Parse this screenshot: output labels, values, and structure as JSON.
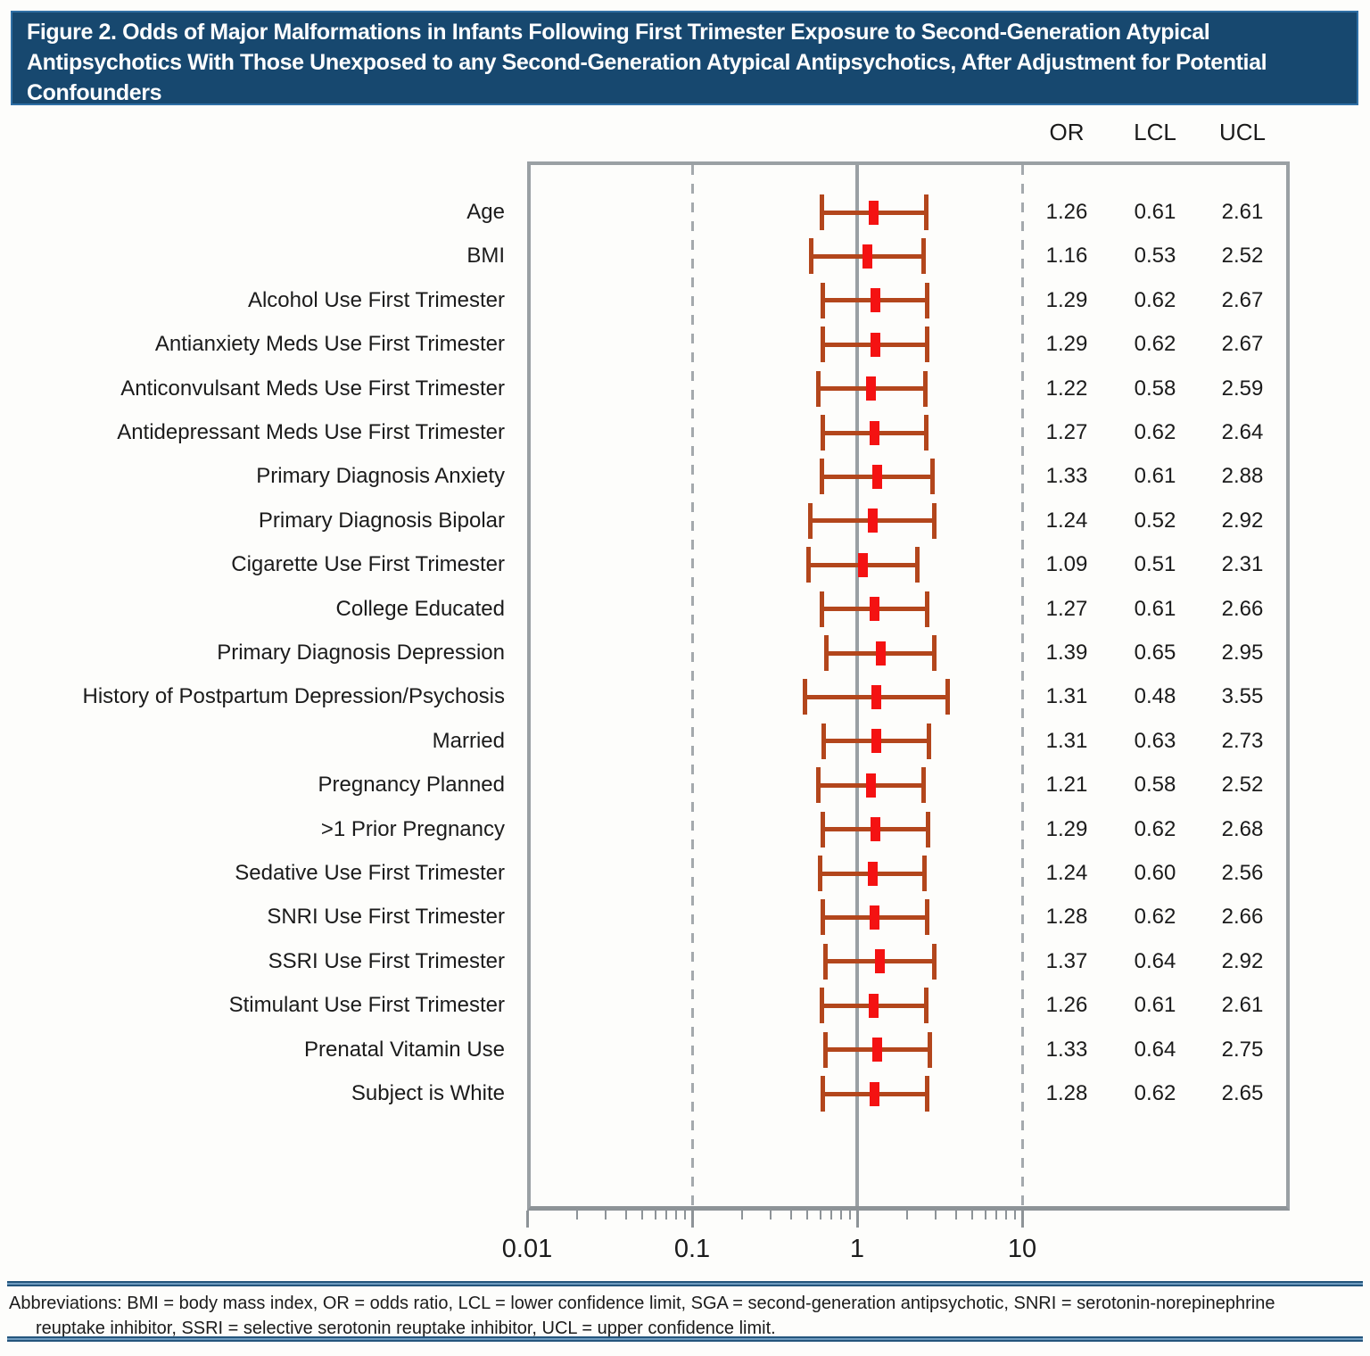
{
  "title": "Figure 2. Odds of Major Malformations in Infants Following First Trimester Exposure to Second-Generation Atypical\nAntipsychotics With Those Unexposed to any Second-Generation Atypical Antipsychotics, After Adjustment for Potential\nConfounders",
  "columns": {
    "or": "OR",
    "lcl": "LCL",
    "ucl": "UCL"
  },
  "footer": {
    "text": "Abbreviations: BMI = body mass index, OR = odds ratio, LCL = lower confidence limit, SGA = second-generation antipsychotic, SNRI = serotonin-norepinephrine\nreuptake inhibitor, SSRI = selective serotonin reuptake inhibitor, UCL = upper confidence limit."
  },
  "colors": {
    "header_bg": "#17486f",
    "header_border": "#2f6fa5",
    "bar_line": "#b3461c",
    "marker": "#f41212",
    "grid_gray": "#a4a9ad",
    "box_border": "#9aa0a4",
    "rule_blue": "#24557c"
  },
  "chart_data": {
    "type": "forest",
    "title": "Odds of Major Malformations: First Trimester SGA Exposure vs Unexposed (Adjusted)",
    "x_axis": {
      "scale": "log",
      "ticks": [
        0.01,
        0.1,
        1,
        10
      ],
      "tick_labels": [
        "0.01",
        "0.1",
        "1",
        "10"
      ],
      "range": [
        0.01,
        42
      ],
      "minor_ticks": "log decades 2-9 between 0.01 and 10"
    },
    "reference_line": 1,
    "dashed_gridlines": [
      0.1,
      10
    ],
    "value_columns": [
      "OR",
      "LCL",
      "UCL"
    ],
    "rows": [
      {
        "label": "Age",
        "or": 1.26,
        "lcl": 0.61,
        "ucl": 2.61
      },
      {
        "label": "BMI",
        "or": 1.16,
        "lcl": 0.53,
        "ucl": 2.52
      },
      {
        "label": "Alcohol Use First Trimester",
        "or": 1.29,
        "lcl": 0.62,
        "ucl": 2.67
      },
      {
        "label": "Antianxiety Meds Use First Trimester",
        "or": 1.29,
        "lcl": 0.62,
        "ucl": 2.67
      },
      {
        "label": "Anticonvulsant Meds Use First Trimester",
        "or": 1.22,
        "lcl": 0.58,
        "ucl": 2.59
      },
      {
        "label": "Antidepressant Meds Use First Trimester",
        "or": 1.27,
        "lcl": 0.62,
        "ucl": 2.64
      },
      {
        "label": "Primary Diagnosis Anxiety",
        "or": 1.33,
        "lcl": 0.61,
        "ucl": 2.88
      },
      {
        "label": "Primary Diagnosis Bipolar",
        "or": 1.24,
        "lcl": 0.52,
        "ucl": 2.92
      },
      {
        "label": "Cigarette Use First Trimester",
        "or": 1.09,
        "lcl": 0.51,
        "ucl": 2.31
      },
      {
        "label": "College Educated",
        "or": 1.27,
        "lcl": 0.61,
        "ucl": 2.66
      },
      {
        "label": "Primary Diagnosis Depression",
        "or": 1.39,
        "lcl": 0.65,
        "ucl": 2.95
      },
      {
        "label": "History of Postpartum Depression/Psychosis",
        "or": 1.31,
        "lcl": 0.48,
        "ucl": 3.55
      },
      {
        "label": "Married",
        "or": 1.31,
        "lcl": 0.63,
        "ucl": 2.73
      },
      {
        "label": "Pregnancy Planned",
        "or": 1.21,
        "lcl": 0.58,
        "ucl": 2.52
      },
      {
        "label": ">1 Prior Pregnancy",
        "or": 1.29,
        "lcl": 0.62,
        "ucl": 2.68
      },
      {
        "label": "Sedative Use First Trimester",
        "or": 1.24,
        "lcl": 0.6,
        "ucl": 2.56
      },
      {
        "label": "SNRI Use First Trimester",
        "or": 1.28,
        "lcl": 0.62,
        "ucl": 2.66
      },
      {
        "label": "SSRI Use First Trimester",
        "or": 1.37,
        "lcl": 0.64,
        "ucl": 2.92
      },
      {
        "label": "Stimulant Use First Trimester",
        "or": 1.26,
        "lcl": 0.61,
        "ucl": 2.61
      },
      {
        "label": "Prenatal Vitamin Use",
        "or": 1.33,
        "lcl": 0.64,
        "ucl": 2.75
      },
      {
        "label": "Subject is White",
        "or": 1.28,
        "lcl": 0.62,
        "ucl": 2.65
      }
    ]
  },
  "layout_meta": {
    "note": "forest plot, log x-axis, red OR markers with rust confidence-interval whiskers"
  }
}
